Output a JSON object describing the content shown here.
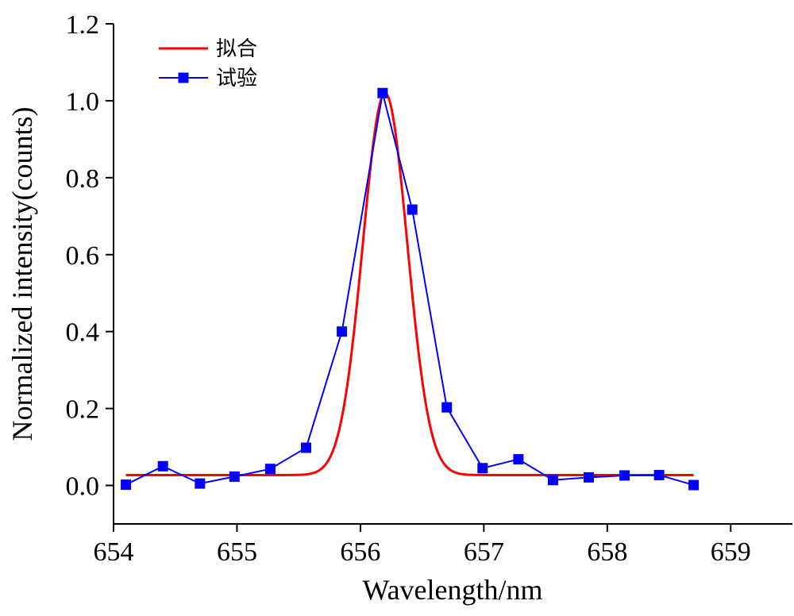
{
  "chart_data": {
    "type": "line",
    "title": "",
    "xlabel": "Wavelength/nm",
    "ylabel": "Normalized intensity(counts)",
    "xlim": [
      654,
      659.5
    ],
    "ylim": [
      -0.1,
      1.2
    ],
    "x_ticks": [
      654,
      655,
      656,
      657,
      658,
      659
    ],
    "x_tick_labels": [
      "654",
      "655",
      "656",
      "657",
      "658",
      "659"
    ],
    "y_ticks": [
      0.0,
      0.2,
      0.4,
      0.6,
      0.8,
      1.0,
      1.2
    ],
    "y_tick_labels": [
      "0.0",
      "0.2",
      "0.4",
      "0.6",
      "0.8",
      "1.0",
      "1.2"
    ],
    "grid": false,
    "legend_position": "top-left",
    "series": [
      {
        "name": "拟合",
        "style": "line",
        "color": "#ff0000",
        "model": "gaussian",
        "baseline": 0.027,
        "amplitude": 0.993,
        "center": 656.2,
        "sigma": 0.18,
        "x_range": [
          654.1,
          658.7
        ]
      },
      {
        "name": "试验",
        "style": "line-square-markers",
        "color": "#0000ff",
        "x": [
          654.1,
          654.4,
          654.7,
          654.98,
          655.27,
          655.56,
          655.85,
          656.18,
          656.42,
          656.7,
          656.99,
          657.28,
          657.56,
          657.85,
          658.14,
          658.42,
          658.7
        ],
        "y": [
          0.002,
          0.05,
          0.005,
          0.023,
          0.043,
          0.098,
          0.4,
          1.02,
          0.717,
          0.203,
          0.045,
          0.068,
          0.014,
          0.021,
          0.026,
          0.027,
          0.001
        ]
      }
    ]
  }
}
